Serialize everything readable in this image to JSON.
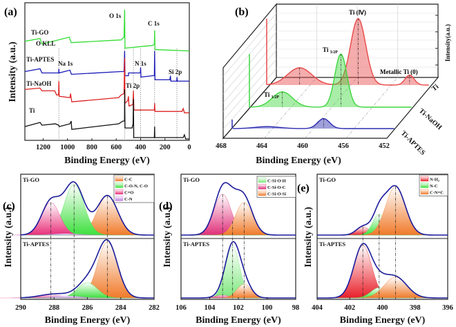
{
  "chart_data": [
    {
      "panel": "(a)",
      "type": "line",
      "xlabel": "Binding Energy (eV)",
      "ylabel": "Intensity (a.u.)",
      "xlim": [
        1350,
        0
      ],
      "xticks": [
        1200,
        1000,
        800,
        600,
        400,
        200,
        0
      ],
      "grid": false,
      "series": [
        {
          "name": "Ti-GO",
          "color": "#33dd33",
          "points": [
            [
              1350,
              72
            ],
            [
              1225,
              74
            ],
            [
              1210,
              70
            ],
            [
              985,
              75
            ],
            [
              970,
              71
            ],
            [
              560,
              73
            ],
            [
              536,
              75
            ],
            [
              531,
              95
            ],
            [
              528,
              67
            ],
            [
              300,
              69
            ],
            [
              287,
              70
            ],
            [
              285,
              80
            ],
            [
              282,
              66
            ],
            [
              0,
              65
            ]
          ]
        },
        {
          "name": "Ti-APTES",
          "color": "#1a1ab8",
          "points": [
            [
              1350,
              50
            ],
            [
              1225,
              52
            ],
            [
              1210,
              49
            ],
            [
              1072,
              49
            ],
            [
              1071,
              52
            ],
            [
              1069,
              49
            ],
            [
              980,
              51
            ],
            [
              968,
              48
            ],
            [
              560,
              50
            ],
            [
              536,
              50
            ],
            [
              531,
              65
            ],
            [
              528,
              47
            ],
            [
              500,
              47
            ],
            [
              499,
              49
            ],
            [
              402,
              49
            ],
            [
              400,
              53
            ],
            [
              397,
              46
            ],
            [
              300,
              47
            ],
            [
              287,
              47
            ],
            [
              285,
              65
            ],
            [
              282,
              44
            ],
            [
              160,
              44
            ],
            [
              155,
              47
            ],
            [
              152,
              43
            ],
            [
              103,
              43
            ],
            [
              101,
              46
            ],
            [
              98,
              43
            ],
            [
              0,
              43
            ]
          ]
        },
        {
          "name": "Ti-NaOH",
          "color": "#dd2222",
          "points": [
            [
              1350,
              37
            ],
            [
              1225,
              38
            ],
            [
              1210,
              36
            ],
            [
              1105,
              36
            ],
            [
              1090,
              33
            ],
            [
              1073,
              33
            ],
            [
              1071,
              43
            ],
            [
              1068,
              32
            ],
            [
              980,
              31
            ],
            [
              975,
              34
            ],
            [
              965,
              28
            ],
            [
              580,
              31
            ],
            [
              560,
              33
            ],
            [
              536,
              34
            ],
            [
              531,
              60
            ],
            [
              528,
              27
            ],
            [
              505,
              29
            ],
            [
              500,
              32
            ],
            [
              495,
              25
            ],
            [
              463,
              26
            ],
            [
              459,
              36
            ],
            [
              455,
              22
            ],
            [
              300,
              22
            ],
            [
              287,
              22
            ],
            [
              285,
              27
            ],
            [
              282,
              21
            ],
            [
              60,
              21
            ],
            [
              50,
              23
            ],
            [
              40,
              20
            ],
            [
              0,
              20
            ]
          ]
        },
        {
          "name": "Ti",
          "color": "#111111",
          "points": [
            [
              1350,
              10
            ],
            [
              1225,
              13
            ],
            [
              1210,
              11
            ],
            [
              1100,
              12
            ],
            [
              1072,
              11
            ],
            [
              1068,
              10
            ],
            [
              980,
              12
            ],
            [
              970,
              14
            ],
            [
              965,
              8
            ],
            [
              580,
              12
            ],
            [
              545,
              14
            ],
            [
              532,
              14
            ],
            [
              531,
              37
            ],
            [
              528,
              9
            ],
            [
              470,
              9
            ],
            [
              462,
              12
            ],
            [
              459,
              30
            ],
            [
              456,
              2
            ],
            [
              300,
              2
            ],
            [
              287,
              2
            ],
            [
              285,
              10
            ],
            [
              283,
              2
            ],
            [
              50,
              2
            ],
            [
              40,
              4
            ],
            [
              30,
              1
            ],
            [
              0,
              1
            ]
          ]
        }
      ],
      "annotations": [
        "Ti-GO",
        "O KLL",
        "Ti-APTES",
        "Na 1s",
        "N 1s",
        "Si 2p",
        "Ti-NaOH",
        "Ti 2p",
        "Ti",
        "O 1s",
        "C 1s"
      ],
      "reference_lines": [
        1071,
        531,
        459,
        400,
        285,
        102
      ]
    },
    {
      "panel": "(b)",
      "type": "area",
      "projection": "3d-waterfall",
      "xlabel": "Binding Energy (eV)",
      "zlabel": "Intensity(a.u.)",
      "xlim": [
        468,
        452
      ],
      "xticks": [
        468,
        464,
        460,
        456,
        452
      ],
      "series": [
        {
          "name": "Ti",
          "color": "#e84848",
          "peaks": [
            {
              "center": 464.8,
              "amp": 0.26,
              "sigma": 1.2
            },
            {
              "center": 459.0,
              "amp": 1.0,
              "sigma": 0.75
            },
            {
              "center": 453.9,
              "amp": 0.15,
              "sigma": 0.45
            }
          ]
        },
        {
          "name": "Ti-NaOH",
          "color": "#3ed63e",
          "peaks": [
            {
              "center": 464.8,
              "amp": 0.23,
              "sigma": 1.0
            },
            {
              "center": 459.0,
              "amp": 0.8,
              "sigma": 0.6
            }
          ]
        },
        {
          "name": "Ti-APTES",
          "color": "#2a2ab0",
          "peaks": [
            {
              "center": 464.6,
              "amp": 0.03,
              "sigma": 1.2
            },
            {
              "center": 459.0,
              "amp": 0.15,
              "sigma": 0.6
            }
          ]
        }
      ],
      "annotations": [
        {
          "label": "Ti (Ⅳ)",
          "sub": ""
        },
        {
          "label": "Ti ",
          "sub": "3/2P"
        },
        {
          "label": "Metallic Ti (0)",
          "sub": ""
        },
        {
          "label": "Ti ",
          "sub": "1/2P"
        }
      ]
    },
    {
      "panel": "(c)",
      "type": "area",
      "xlabel": "Binding Energy (eV)",
      "ylabel": "Intensity (a.u.)",
      "xlim": [
        290,
        282
      ],
      "xticks": [
        290,
        288,
        286,
        284,
        282
      ],
      "legend": [
        "C-C",
        "C-O-N, C-O",
        "C=O",
        "C-N"
      ],
      "legend_position": "top-right",
      "colors": [
        "#f07a2a",
        "#3de03d",
        "#e8307a",
        "#c080e0"
      ],
      "subplots": [
        {
          "name": "Ti-GO",
          "components": [
            {
              "center": 284.8,
              "amp": 0.57,
              "sigma": 0.62
            },
            {
              "center": 286.8,
              "amp": 0.73,
              "sigma": 0.6
            },
            {
              "center": 288.2,
              "amp": 0.47,
              "sigma": 0.55
            },
            {
              "center": 287.3,
              "amp": 0.02,
              "sigma": 0.8
            }
          ]
        },
        {
          "name": "Ti-APTES",
          "components": [
            {
              "center": 284.8,
              "amp": 0.81,
              "sigma": 0.6
            },
            {
              "center": 286.0,
              "amp": 0.22,
              "sigma": 0.6
            },
            {
              "center": 288.2,
              "amp": 0.04,
              "sigma": 0.8
            },
            {
              "center": 287.3,
              "amp": 0.03,
              "sigma": 0.8
            }
          ]
        }
      ]
    },
    {
      "panel": "(d)",
      "type": "area",
      "xlabel": "Binding Energy (eV)",
      "ylabel": "Intensity (a.u.)",
      "xlim": [
        106,
        98
      ],
      "xticks": [
        106,
        104,
        102,
        100,
        98
      ],
      "legend": [
        "C-Si-O-H",
        "C-Si-O-C",
        "C-Si-O-Si"
      ],
      "legend_position": "top-right",
      "colors": [
        "#7de87d",
        "#e0307a",
        "#f07a2a"
      ],
      "subplots": [
        {
          "name": "Ti-GO",
          "components": [
            {
              "center": 102.4,
              "amp": 0.2,
              "sigma": 0.7
            },
            {
              "center": 103.1,
              "amp": 0.59,
              "sigma": 0.6
            },
            {
              "center": 101.6,
              "amp": 0.47,
              "sigma": 0.6
            }
          ]
        },
        {
          "name": "Ti-APTES",
          "components": [
            {
              "center": 102.4,
              "amp": 0.74,
              "sigma": 0.5
            },
            {
              "center": 103.1,
              "amp": 0.04,
              "sigma": 0.5
            },
            {
              "center": 101.6,
              "amp": 0.2,
              "sigma": 0.5
            }
          ]
        }
      ]
    },
    {
      "panel": "(e)",
      "type": "area",
      "xlabel": "Binding Energy (eV)",
      "ylabel": "Intensity (a.u.)",
      "xlim": [
        404,
        396
      ],
      "xticks": [
        404,
        402,
        400,
        398,
        396
      ],
      "legend": [
        "N-H₂",
        "N-C",
        "C-N=C"
      ],
      "legend_position": "top-right",
      "colors": [
        "#e8202a",
        "#3de03d",
        "#f07a2a"
      ],
      "subplots": [
        {
          "name": "Ti-GO",
          "components": [
            {
              "center": 401.2,
              "amp": 0.12,
              "sigma": 0.4
            },
            {
              "center": 400.2,
              "amp": 0.3,
              "sigma": 0.4
            },
            {
              "center": 399.2,
              "amp": 0.7,
              "sigma": 0.6
            }
          ]
        },
        {
          "name": "Ti-APTES",
          "components": [
            {
              "center": 401.2,
              "amp": 0.76,
              "sigma": 0.55
            },
            {
              "center": 400.2,
              "amp": 0.15,
              "sigma": 0.5
            },
            {
              "center": 399.2,
              "amp": 0.3,
              "sigma": 0.7
            }
          ]
        }
      ]
    }
  ]
}
